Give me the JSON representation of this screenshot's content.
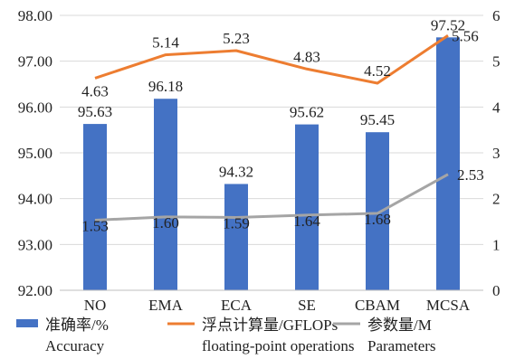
{
  "chart_data": {
    "type": "bar",
    "categories": [
      "NO",
      "EMA",
      "ECA",
      "SE",
      "CBAM",
      "MCSA"
    ],
    "series": [
      {
        "name": "准确率/%",
        "name_en": "Accuracy",
        "type": "bar",
        "axis": "left",
        "color": "#4472C4",
        "values": [
          95.63,
          96.18,
          94.32,
          95.62,
          95.45,
          97.52
        ],
        "labels": [
          "95.63",
          "96.18",
          "94.32",
          "95.62",
          "95.45",
          "97.52"
        ]
      },
      {
        "name": "浮点计算量/GFLOPs",
        "name_en": "floating-point operations",
        "type": "line",
        "axis": "right",
        "color": "#ED7D31",
        "values": [
          4.63,
          5.14,
          5.23,
          4.83,
          4.52,
          5.56
        ],
        "labels": [
          "4.63",
          "5.14",
          "5.23",
          "4.83",
          "4.52",
          "5.56"
        ]
      },
      {
        "name": "参数量/M",
        "name_en": "Parameters",
        "type": "line",
        "axis": "right",
        "color": "#A5A5A5",
        "values": [
          1.53,
          1.6,
          1.59,
          1.64,
          1.68,
          2.53
        ],
        "labels": [
          "1.53",
          "1.60",
          "1.59",
          "1.64",
          "1.68",
          "2.53"
        ]
      }
    ],
    "y_left": {
      "min": 92,
      "max": 98,
      "ticks": [
        "92.00",
        "93.00",
        "94.00",
        "95.00",
        "96.00",
        "97.00",
        "98.00"
      ]
    },
    "y_right": {
      "min": 0,
      "max": 6,
      "ticks": [
        "0",
        "1",
        "2",
        "3",
        "4",
        "5",
        "6"
      ]
    },
    "grid": "horizontal",
    "legend_position": "bottom"
  }
}
